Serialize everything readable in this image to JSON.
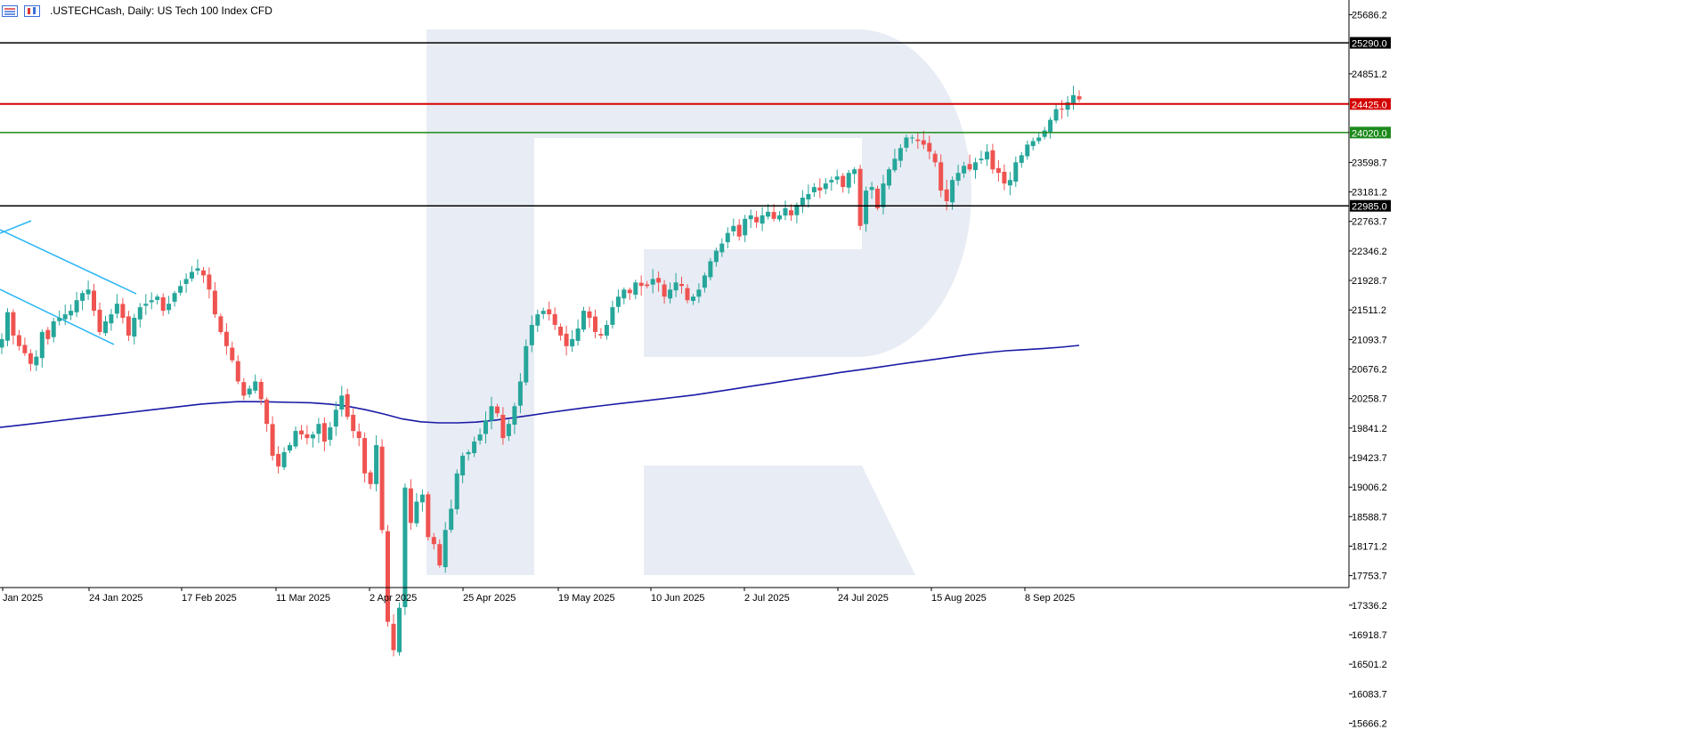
{
  "header": {
    "title": ".USTECHCash, Daily:  US Tech 100 Index CFD"
  },
  "colors": {
    "bull": "#26a69a",
    "bear": "#ef5350",
    "ma": "#1a1aa6",
    "trend": "#29b6f6",
    "level_black": "#000000",
    "level_red": "#d50000",
    "level_green": "#1b8a1b",
    "watermark": "#e8ecf4"
  },
  "chart_data": {
    "type": "candlestick",
    "instrument": ".USTECHCash",
    "timeframe": "Daily",
    "description": "US Tech 100 Index CFD",
    "y_range": [
      15457.8,
      25895.3
    ],
    "y_ticks": [
      "25686.2",
      "25290.0",
      "24851.2",
      "24425.0",
      "24020.0",
      "23598.7",
      "23181.2",
      "22985.0",
      "22763.7",
      "22346.2",
      "21928.7",
      "21511.2",
      "21093.7",
      "20676.2",
      "20258.7",
      "19841.2",
      "19423.7",
      "19006.2",
      "18588.7",
      "18171.2",
      "17753.7",
      "17336.2",
      "16918.7",
      "16501.2",
      "16083.7",
      "15666.2"
    ],
    "x_labels": [
      "Jan 2025",
      "24 Jan 2025",
      "17 Feb 2025",
      "11 Mar 2025",
      "2 Apr 2025",
      "25 Apr 2025",
      "19 May 2025",
      "10 Jun 2025",
      "2 Jul 2025",
      "24 Jul 2025",
      "15 Aug 2025",
      "8 Sep 2025"
    ],
    "horizontal_levels": [
      {
        "value": 25290.0,
        "label": "25290.0",
        "color": "black"
      },
      {
        "value": 24425.0,
        "label": "24425.0",
        "color": "red"
      },
      {
        "value": 24020.0,
        "label": "24020.0",
        "color": "green"
      },
      {
        "value": 22985.0,
        "label": "22985.0",
        "color": "black"
      }
    ],
    "closes": [
      21100,
      21480,
      21150,
      21000,
      20900,
      20750,
      20850,
      21200,
      21100,
      21350,
      21400,
      21450,
      21500,
      21650,
      21750,
      21800,
      21500,
      21200,
      21350,
      21450,
      21600,
      21400,
      21150,
      21400,
      21550,
      21600,
      21650,
      21700,
      21500,
      21600,
      21750,
      21850,
      21950,
      22050,
      22100,
      22000,
      21800,
      21450,
      21200,
      21000,
      20800,
      20500,
      20300,
      20400,
      20500,
      20250,
      19900,
      19450,
      19300,
      19500,
      19600,
      19800,
      19750,
      19700,
      19750,
      19900,
      19650,
      19850,
      20100,
      20300,
      20000,
      19800,
      19700,
      19200,
      19050,
      19600,
      18400,
      17100,
      16700,
      17300,
      19000,
      18500,
      18800,
      18900,
      18300,
      18200,
      17900,
      18400,
      18700,
      19200,
      19450,
      19500,
      19650,
      19750,
      19950,
      20150,
      20050,
      19700,
      19900,
      20150,
      20500,
      21000,
      21300,
      21450,
      21500,
      21450,
      21300,
      21150,
      21000,
      21100,
      21250,
      21500,
      21400,
      21200,
      21150,
      21300,
      21550,
      21700,
      21800,
      21750,
      21900,
      21850,
      21850,
      21950,
      21900,
      21700,
      21800,
      21900,
      21850,
      21650,
      21700,
      21800,
      22000,
      22200,
      22350,
      22450,
      22600,
      22700,
      22550,
      22800,
      22850,
      22750,
      22850,
      22900,
      22800,
      22850,
      22950,
      22850,
      23000,
      23100,
      23150,
      23250,
      23200,
      23300,
      23350,
      23400,
      23250,
      23450,
      23500,
      22700,
      23200,
      23250,
      22950,
      23300,
      23500,
      23650,
      23800,
      23950,
      23950,
      23900,
      23850,
      23750,
      23600,
      23200,
      23050,
      23350,
      23450,
      23550,
      23500,
      23600,
      23650,
      23750,
      23500,
      23450,
      23300,
      23350,
      23600,
      23700,
      23850,
      23900,
      23950,
      24050,
      24200,
      24350,
      24350,
      24450,
      24550,
      24490
    ],
    "ma_values": [
      19850,
      19880,
      19910,
      19940,
      19970,
      20000,
      20030,
      20060,
      20090,
      20120,
      20150,
      20180,
      20200,
      20215,
      20215,
      20210,
      20205,
      20200,
      20180,
      20150,
      20100,
      20040,
      19970,
      19930,
      19915,
      19915,
      19925,
      19950,
      19985,
      20020,
      20060,
      20095,
      20130,
      20160,
      20190,
      20220,
      20250,
      20280,
      20310,
      20350,
      20390,
      20430,
      20470,
      20510,
      20550,
      20590,
      20630,
      20665,
      20700,
      20740,
      20775,
      20810,
      20845,
      20880,
      20910,
      20935,
      20950,
      20965,
      20985,
      21010
    ]
  }
}
